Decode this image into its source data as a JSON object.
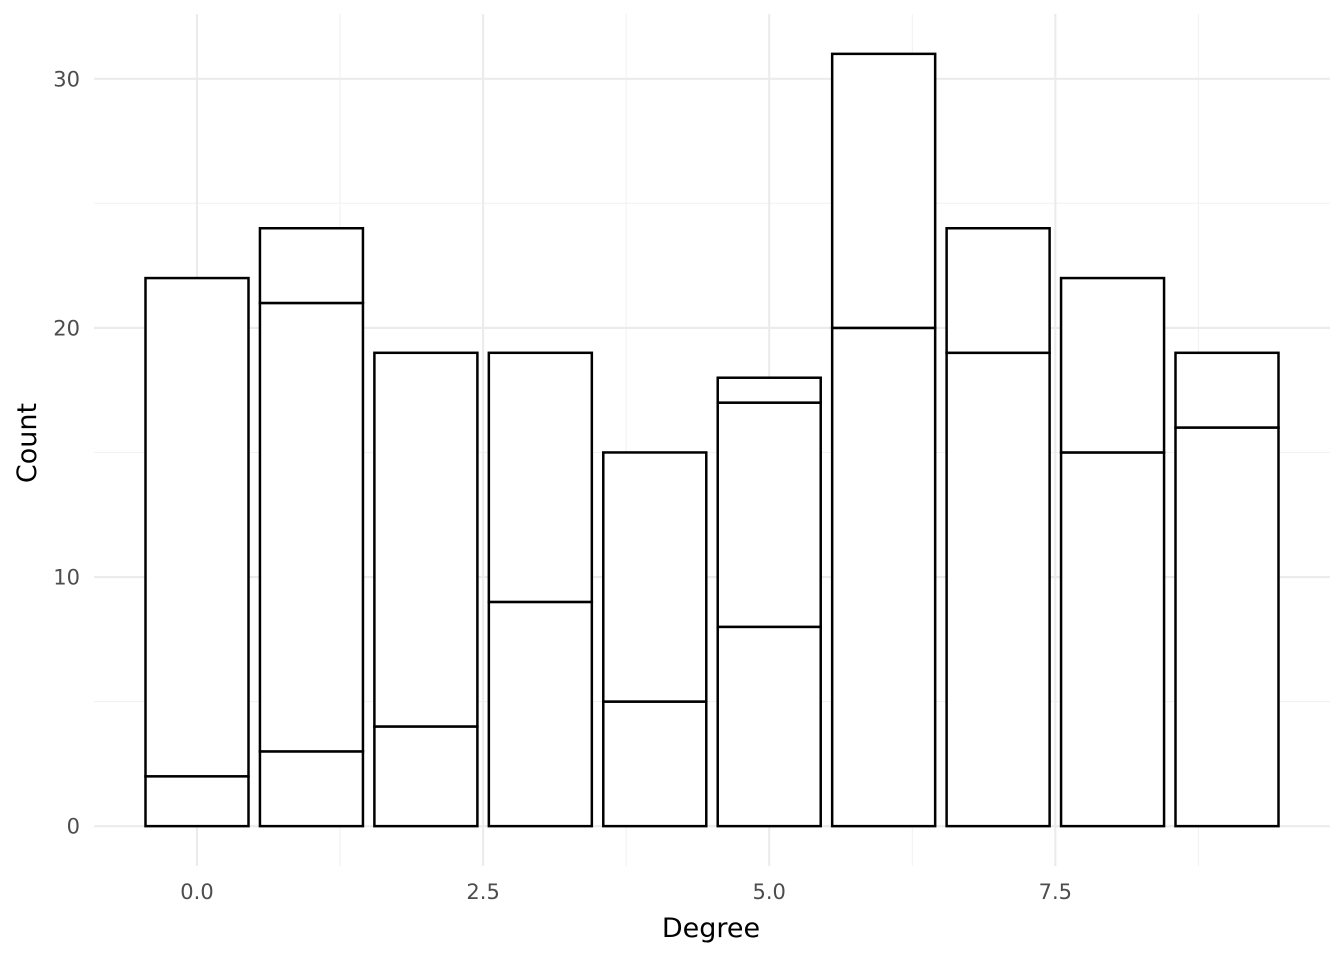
{
  "chart_data": {
    "type": "bar",
    "stacked": true,
    "title": "",
    "xlabel": "Degree",
    "ylabel": "Count",
    "xlim": [
      -0.9,
      9.9
    ],
    "ylim": [
      -1.6,
      32.6
    ],
    "xticks": [
      0.0,
      2.5,
      5.0,
      7.5
    ],
    "xtick_labels": [
      "0.0",
      "2.5",
      "5.0",
      "7.5"
    ],
    "xticks_minor": [
      1.25,
      3.75,
      6.25,
      8.75
    ],
    "yticks": [
      0,
      10,
      20,
      30
    ],
    "ytick_labels": [
      "0",
      "10",
      "20",
      "30"
    ],
    "yticks_minor": [
      5,
      15,
      25
    ],
    "bar_width": 0.9,
    "grid": true,
    "legend": "none",
    "colors": {
      "bar_fill": "#ffffff",
      "bar_outline": "#000000",
      "grid_major": "#ebebeb",
      "grid_minor": "#f2f2f2",
      "tick_label": "#4d4d4d",
      "axis_title": "#000000"
    },
    "bars": [
      {
        "x": 0,
        "segments": [
          2,
          20
        ]
      },
      {
        "x": 1,
        "segments": [
          3,
          18,
          3
        ]
      },
      {
        "x": 2,
        "segments": [
          4,
          15
        ]
      },
      {
        "x": 3,
        "segments": [
          9,
          10
        ]
      },
      {
        "x": 4,
        "segments": [
          5,
          10
        ]
      },
      {
        "x": 5,
        "segments": [
          8,
          9,
          1
        ]
      },
      {
        "x": 6,
        "segments": [
          20,
          11
        ]
      },
      {
        "x": 7,
        "segments": [
          19,
          5
        ]
      },
      {
        "x": 8,
        "segments": [
          15,
          7
        ]
      },
      {
        "x": 9,
        "segments": [
          16,
          3
        ]
      }
    ],
    "totals": [
      22,
      24,
      19,
      19,
      15,
      18,
      31,
      24,
      22,
      19
    ]
  }
}
